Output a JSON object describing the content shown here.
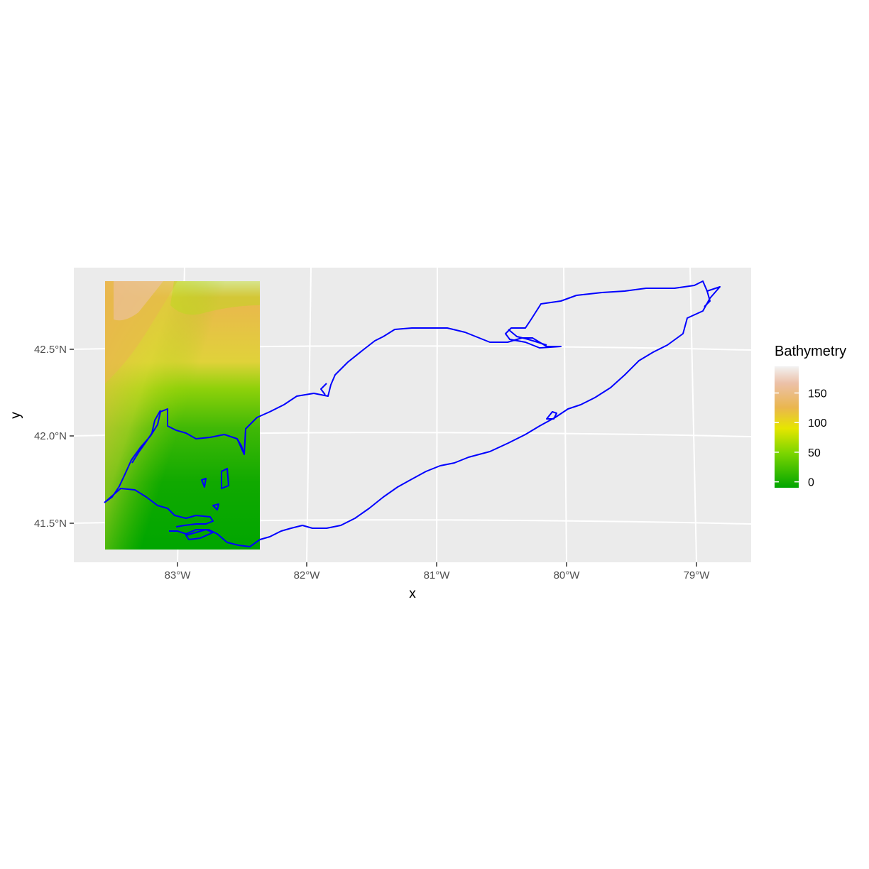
{
  "plot": {
    "x_axis_title": "x",
    "y_axis_title": "y",
    "x_ticks": [
      "83°W",
      "82°W",
      "81°W",
      "80°W",
      "79°W"
    ],
    "y_ticks": [
      "42.5°N",
      "42.0°N",
      "41.5°N"
    ]
  },
  "legend": {
    "title": "Bathymetry",
    "labels": [
      "150",
      "100",
      "50",
      "0"
    ],
    "label_values": [
      150,
      100,
      50,
      0
    ],
    "range": [
      -10,
      195
    ],
    "colors": [
      "#00a600",
      "#e6e600",
      "#eab64e",
      "#ecb176",
      "#f2f2f2"
    ]
  },
  "map_data": {
    "type": "map",
    "raster_layer": "Bathymetry",
    "raster_extent_lon": [
      -83.55,
      -82.35
    ],
    "raster_extent_lat": [
      41.34,
      42.9
    ],
    "outline_color": "#0000ff",
    "background": "#ebebeb",
    "grid_color": "#ffffff"
  }
}
